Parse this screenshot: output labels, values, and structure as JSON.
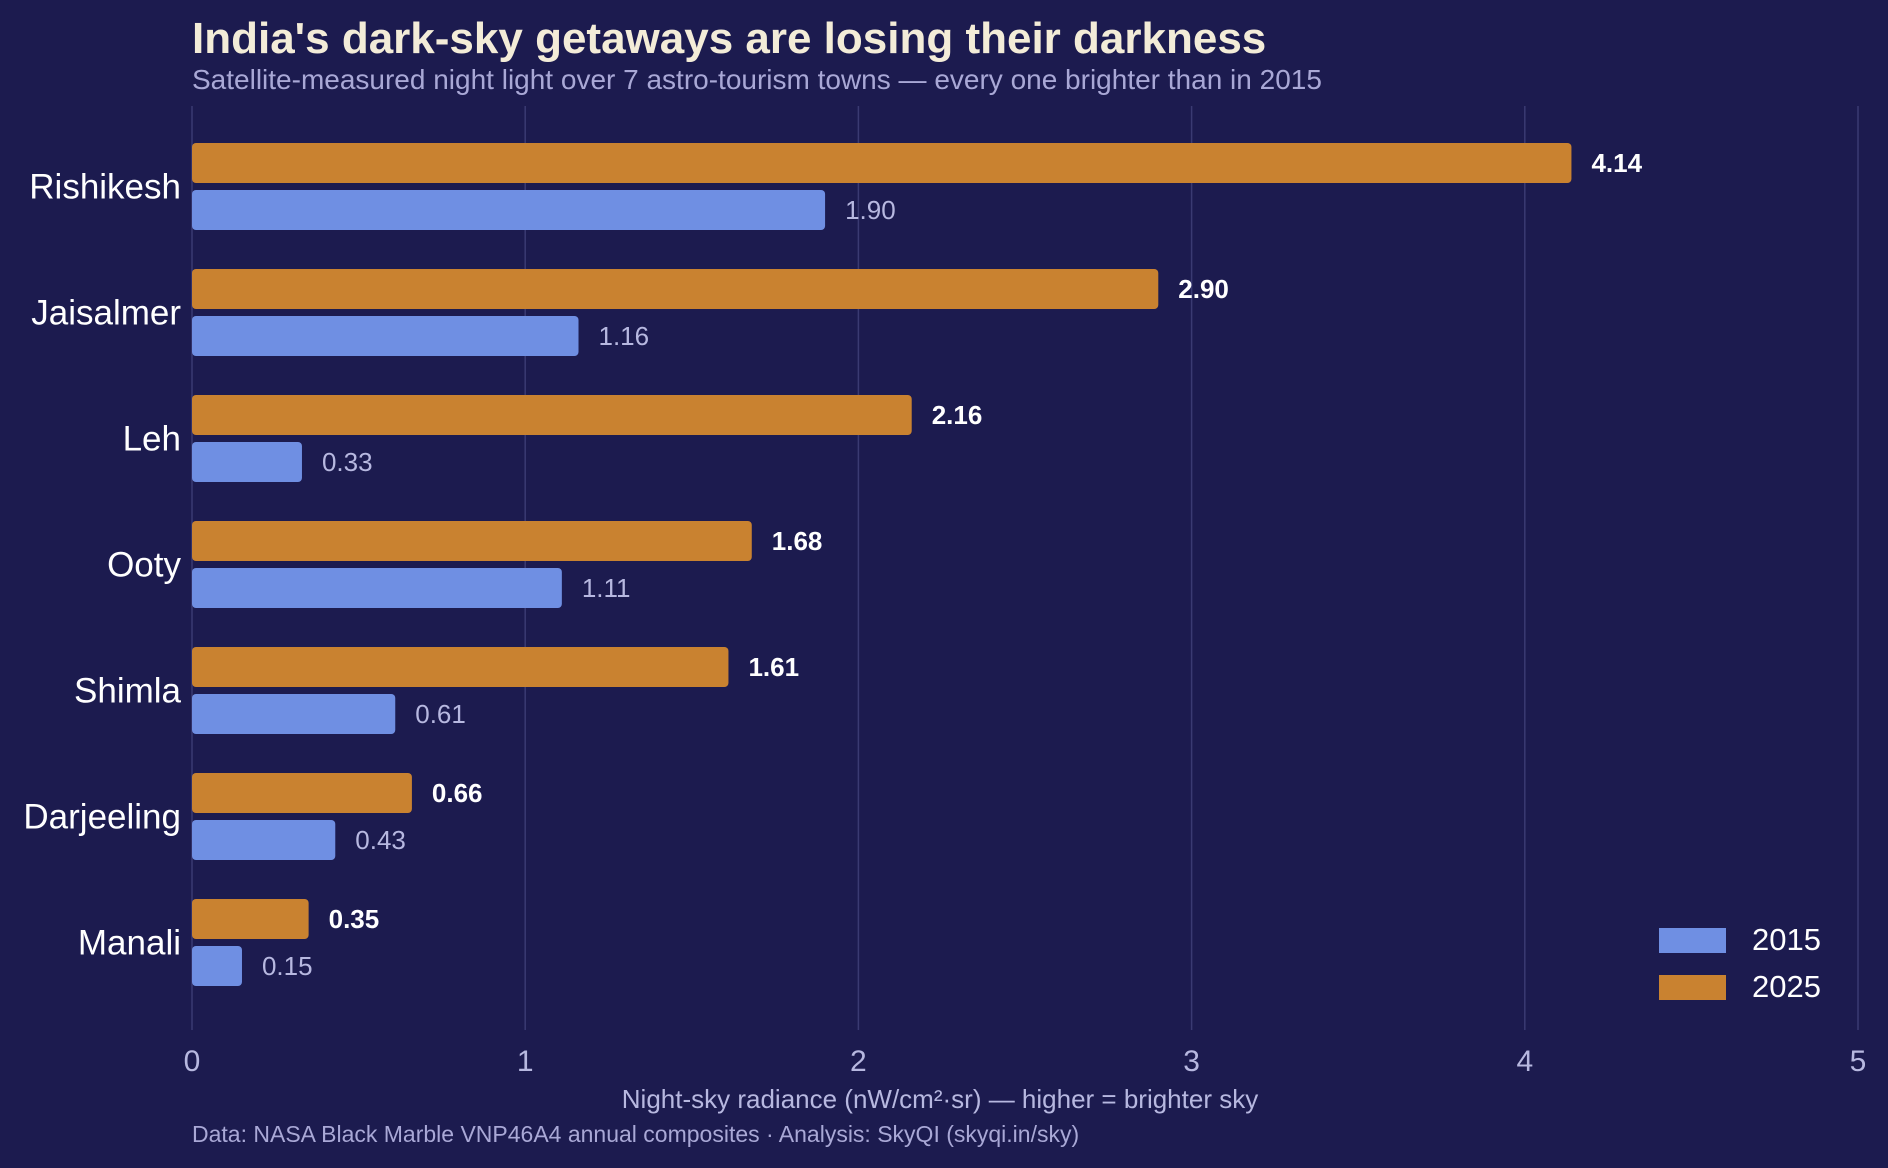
{
  "title": "India's dark-sky getaways are losing their darkness",
  "subtitle": "Satellite-measured night light over 7 astro-tourism towns — every one brighter than in 2015",
  "caption": "Data: NASA Black Marble VNP46A4 annual composites · Analysis: SkyQI (skyqi.in/sky)",
  "colors": {
    "background": "#1c1b4f",
    "series_2015": "#6f8fe3",
    "series_2025": "#c98230",
    "title": "#f3ecd8",
    "muted_text": "#a9a8d6",
    "label_2015": "#b7b8e0",
    "label_2025": "#ffffff"
  },
  "chart_data": {
    "type": "bar",
    "orientation": "horizontal",
    "categories": [
      "Rishikesh",
      "Jaisalmer",
      "Leh",
      "Ooty",
      "Shimla",
      "Darjeeling",
      "Manali"
    ],
    "series": [
      {
        "name": "2025",
        "values": [
          4.14,
          2.9,
          2.16,
          1.68,
          1.61,
          0.66,
          0.35
        ]
      },
      {
        "name": "2015",
        "values": [
          1.9,
          1.16,
          0.33,
          1.11,
          0.61,
          0.43,
          0.15
        ]
      }
    ],
    "xlabel": "Night-sky radiance (nW/cm²·sr) — higher = brighter sky",
    "ylabel": "",
    "xlim": [
      0,
      5
    ],
    "xticks": [
      0,
      1,
      2,
      3,
      4,
      5
    ],
    "grid": "vertical",
    "legend": {
      "position": "bottom-right",
      "entries": [
        "2015",
        "2025"
      ]
    },
    "data_labels": true
  }
}
